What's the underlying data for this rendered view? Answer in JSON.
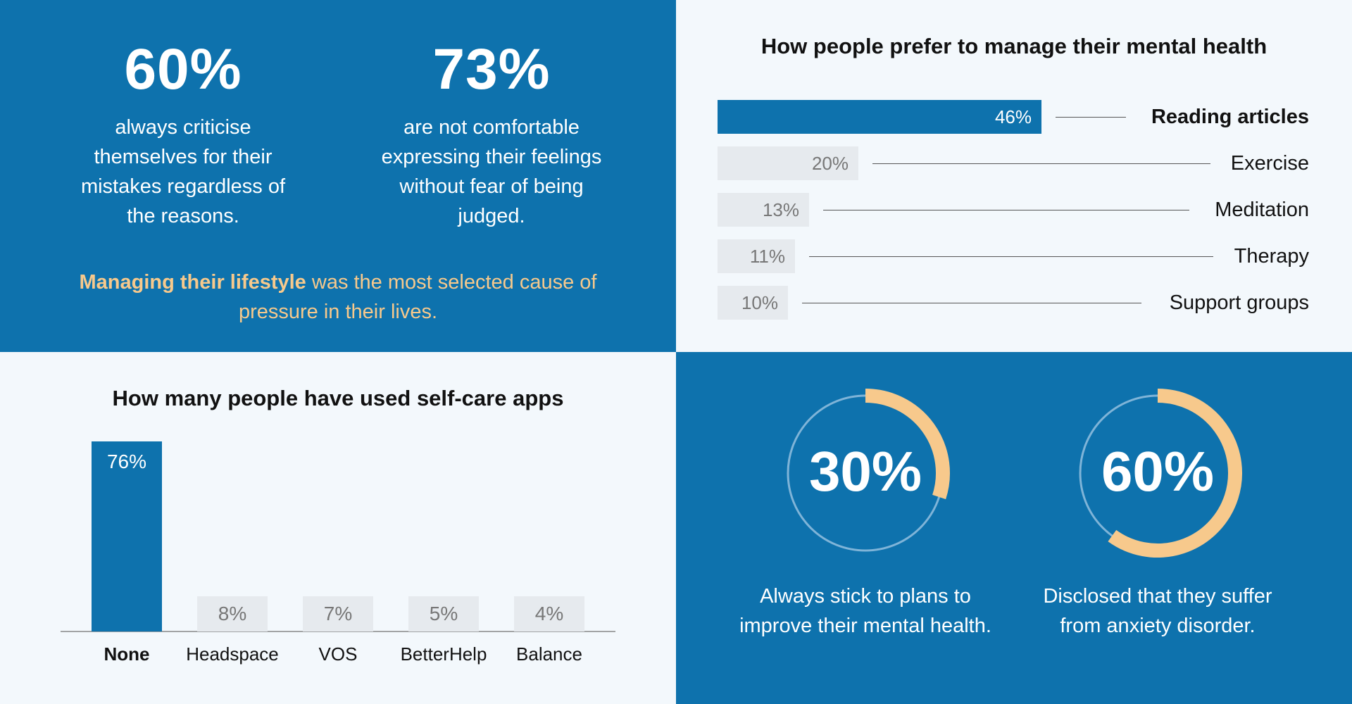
{
  "stats": [
    {
      "value": "60%",
      "text": "always criticise themselves for their mistakes regardless of the reasons."
    },
    {
      "value": "73%",
      "text": "are not comfortable expressing their feelings without fear of being judged."
    }
  ],
  "pressure": {
    "bold": "Managing their lifestyle",
    "rest": " was the most selected cause of pressure in their lives."
  },
  "colors": {
    "primary": "#0e72ad",
    "accent": "#f7c98c",
    "muted": "#e6eaee"
  },
  "chart_data": [
    {
      "type": "bar",
      "orientation": "horizontal",
      "title": "How people prefer to manage their mental health",
      "categories": [
        "Reading articles",
        "Exercise",
        "Meditation",
        "Therapy",
        "Support groups"
      ],
      "values": [
        46,
        20,
        13,
        11,
        10
      ],
      "value_labels": [
        "46%",
        "20%",
        "13%",
        "11%",
        "10%"
      ],
      "highlight_index": 0
    },
    {
      "type": "bar",
      "orientation": "vertical",
      "title": "How many people have used self-care apps",
      "categories": [
        "None",
        "Headspace",
        "VOS",
        "BetterHelp",
        "Balance"
      ],
      "values": [
        76,
        8,
        7,
        5,
        4
      ],
      "value_labels": [
        "76%",
        "8%",
        "7%",
        "5%",
        "4%"
      ],
      "highlight_index": 0
    },
    {
      "type": "pie",
      "style": "donut",
      "items": [
        {
          "value": 30,
          "label": "30%",
          "text": "Always stick to plans to improve their mental health."
        },
        {
          "value": 60,
          "label": "60%",
          "text": "Disclosed that they suffer from anxiety disorder."
        }
      ]
    }
  ]
}
